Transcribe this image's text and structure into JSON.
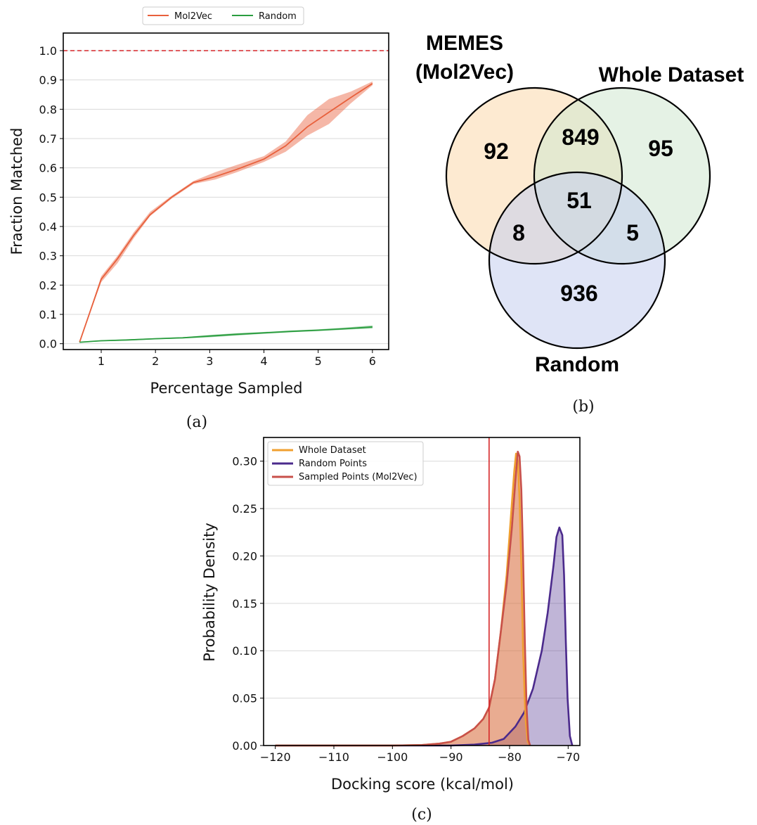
{
  "captions": {
    "a": "(a)",
    "b": "(b)",
    "c": "(c)"
  },
  "chart_data": [
    {
      "id": "a",
      "type": "line",
      "xlabel": "Percentage Sampled",
      "ylabel": "Fraction Matched",
      "xlim": [
        0.3,
        6.3
      ],
      "ylim": [
        -0.02,
        1.06
      ],
      "xticks": [
        "1",
        "2",
        "3",
        "4",
        "5",
        "6"
      ],
      "yticks": [
        "0.0",
        "0.1",
        "0.2",
        "0.3",
        "0.4",
        "0.5",
        "0.6",
        "0.7",
        "0.8",
        "0.9",
        "1.0"
      ],
      "grid": true,
      "legend_position": "top-center",
      "reference_line": {
        "y": 1.0,
        "color": "#d62728",
        "style": "dashed"
      },
      "series": [
        {
          "name": "Mol2Vec",
          "color": "#e8603c",
          "x": [
            0.6,
            1.0,
            1.3,
            1.6,
            1.9,
            2.3,
            2.7,
            3.1,
            3.5,
            4.0,
            4.4,
            4.8,
            5.2,
            5.6,
            6.0
          ],
          "y": [
            0.005,
            0.22,
            0.29,
            0.37,
            0.44,
            0.5,
            0.55,
            0.57,
            0.595,
            0.63,
            0.675,
            0.74,
            0.79,
            0.84,
            0.888
          ],
          "lower": [
            0.005,
            0.21,
            0.275,
            0.36,
            0.435,
            0.495,
            0.545,
            0.56,
            0.585,
            0.62,
            0.655,
            0.71,
            0.75,
            0.82,
            0.882
          ],
          "upper": [
            0.005,
            0.23,
            0.3,
            0.38,
            0.45,
            0.505,
            0.555,
            0.585,
            0.61,
            0.64,
            0.69,
            0.78,
            0.835,
            0.86,
            0.895
          ]
        },
        {
          "name": "Random",
          "color": "#2a9d3f",
          "x": [
            0.6,
            1.0,
            1.5,
            2.0,
            2.5,
            3.0,
            3.5,
            4.0,
            4.5,
            5.0,
            5.5,
            6.0
          ],
          "y": [
            0.005,
            0.01,
            0.013,
            0.017,
            0.02,
            0.026,
            0.032,
            0.037,
            0.042,
            0.046,
            0.051,
            0.057
          ],
          "lower": [
            0.004,
            0.008,
            0.011,
            0.015,
            0.018,
            0.022,
            0.028,
            0.034,
            0.039,
            0.043,
            0.048,
            0.052
          ],
          "upper": [
            0.006,
            0.012,
            0.015,
            0.019,
            0.022,
            0.03,
            0.036,
            0.04,
            0.045,
            0.049,
            0.055,
            0.062
          ]
        }
      ]
    },
    {
      "id": "b",
      "type": "venn",
      "sets": [
        {
          "label_lines": [
            "MEMES",
            "(Mol2Vec)"
          ],
          "color": "#fcdcb3"
        },
        {
          "label_lines": [
            "Whole Dataset"
          ],
          "color": "#cfe8cf"
        },
        {
          "label_lines": [
            "Random"
          ],
          "color": "#c4cdef"
        }
      ],
      "regions": {
        "a_only": "92",
        "ab": "849",
        "b_only": "95",
        "abc": "51",
        "ac": "8",
        "bc": "5",
        "c_only": "936"
      }
    },
    {
      "id": "c",
      "type": "area",
      "xlabel": "Docking score (kcal/mol)",
      "ylabel": "Probability Density",
      "xlim": [
        -122,
        -68
      ],
      "ylim": [
        0,
        0.325
      ],
      "xticks": [
        "−120",
        "−110",
        "−100",
        "−90",
        "−80",
        "−70"
      ],
      "yticks": [
        "0.00",
        "0.05",
        "0.10",
        "0.15",
        "0.20",
        "0.25",
        "0.30"
      ],
      "grid": true,
      "legend_position": "top-left",
      "vertical_line": {
        "x": -83.5,
        "color": "#d62728"
      },
      "series": [
        {
          "name": "Whole Dataset",
          "color": "#f0a030",
          "x": [
            -120,
            -100,
            -95,
            -92,
            -90,
            -88,
            -86,
            -84.5,
            -83.5,
            -82.5,
            -81.5,
            -80.5,
            -79.8,
            -79.2,
            -78.9,
            -78.6,
            -78.3,
            -78.0,
            -77.7,
            -77.3,
            -76.9,
            -76.5
          ],
          "y": [
            0,
            0,
            0.0005,
            0.002,
            0.004,
            0.01,
            0.018,
            0.028,
            0.04,
            0.07,
            0.12,
            0.18,
            0.24,
            0.29,
            0.308,
            0.3,
            0.26,
            0.19,
            0.1,
            0.03,
            0.004,
            0
          ]
        },
        {
          "name": "Random Points",
          "color": "#4b2a8c",
          "x": [
            -120,
            -90,
            -86,
            -83,
            -81,
            -79,
            -77.5,
            -76,
            -74.5,
            -73.5,
            -72.5,
            -72,
            -71.5,
            -71,
            -70.7,
            -70.4,
            -70.1,
            -69.7,
            -69.3
          ],
          "y": [
            0,
            0,
            0.001,
            0.003,
            0.007,
            0.02,
            0.035,
            0.06,
            0.1,
            0.14,
            0.19,
            0.22,
            0.23,
            0.222,
            0.18,
            0.11,
            0.05,
            0.01,
            0
          ]
        },
        {
          "name": "Sampled Points (Mol2Vec)",
          "color": "#c8504a",
          "x": [
            -120,
            -100,
            -95,
            -92,
            -90,
            -88,
            -86,
            -84.5,
            -83.5,
            -82.5,
            -81.5,
            -80.5,
            -79.6,
            -79.0,
            -78.6,
            -78.3,
            -78.0,
            -77.7,
            -77.4,
            -77.1,
            -76.8,
            -76.5
          ],
          "y": [
            0,
            0,
            0.0005,
            0.002,
            0.004,
            0.01,
            0.018,
            0.028,
            0.04,
            0.07,
            0.12,
            0.17,
            0.23,
            0.28,
            0.31,
            0.305,
            0.27,
            0.2,
            0.11,
            0.04,
            0.006,
            0
          ]
        }
      ]
    }
  ]
}
